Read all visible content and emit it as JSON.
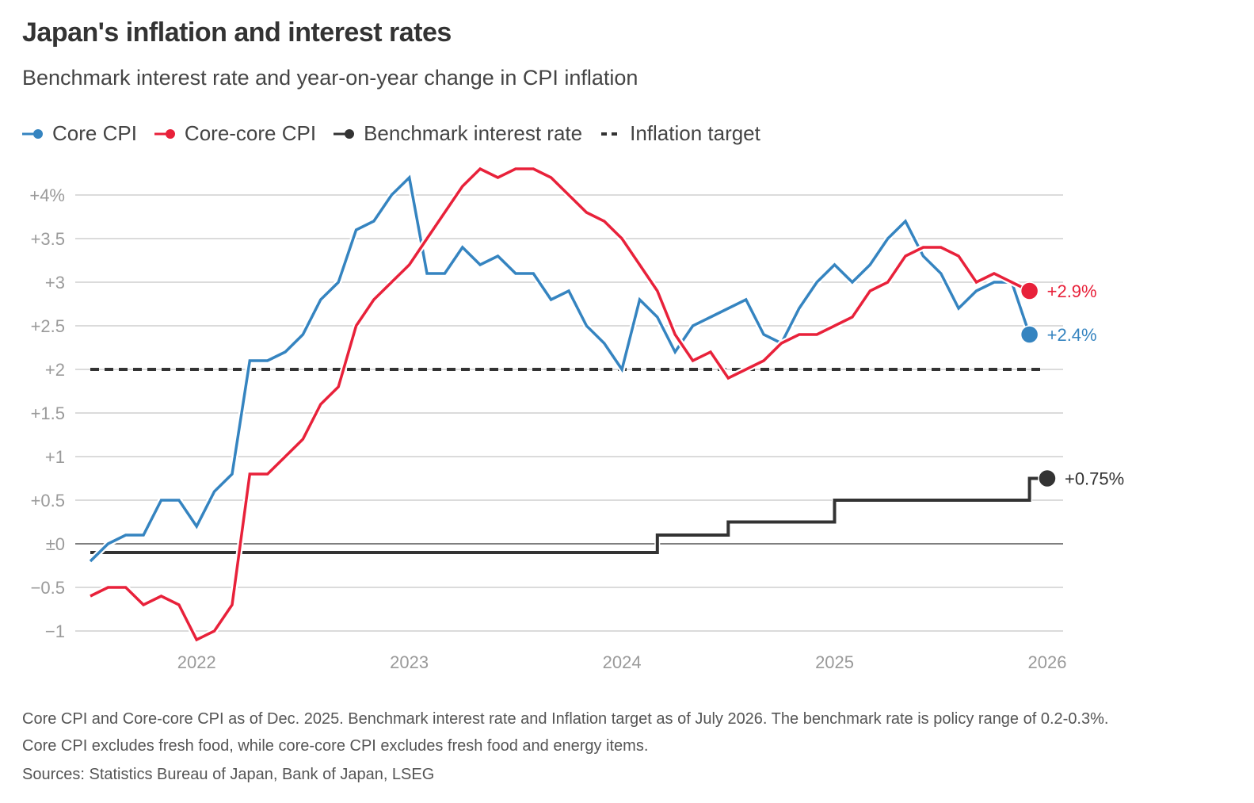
{
  "header": {
    "title": "Japan's inflation and interest rates",
    "subtitle": "Benchmark interest rate and year-on-year change in CPI inflation"
  },
  "legend": [
    {
      "label": "Core CPI",
      "color": "#3584c0",
      "style": "line-dot"
    },
    {
      "label": "Core-core CPI",
      "color": "#e8213a",
      "style": "line-dot"
    },
    {
      "label": "Benchmark interest rate",
      "color": "#333333",
      "style": "line-dot"
    },
    {
      "label": "Inflation target",
      "color": "#333333",
      "style": "dashed"
    }
  ],
  "footer": {
    "note": "Core CPI and Core-core CPI as of Dec. 2025. Benchmark interest rate and Inflation target as of July 2026. The benchmark rate is policy range of 0.2-0.3%. Core CPI excludes fresh food, while core-core CPI excludes fresh food and energy items.",
    "source": "Sources: Statistics Bureau of Japan, Bank of Japan, LSEG"
  },
  "chart_data": {
    "type": "line",
    "title": "Japan's inflation and interest rates",
    "subtitle": "Benchmark interest rate and year-on-year change in CPI inflation",
    "xlabel": "",
    "ylabel": "",
    "x_start": "2021-07",
    "x_unit": "month",
    "xlim": [
      "2021-07",
      "2026-01"
    ],
    "ylim": [
      -1,
      4
    ],
    "grid": true,
    "legend_position": "top-left",
    "y_ticks": [
      {
        "value": 4,
        "label": "+4%"
      },
      {
        "value": 3.5,
        "label": "+3.5"
      },
      {
        "value": 3,
        "label": "+3"
      },
      {
        "value": 2.5,
        "label": "+2.5"
      },
      {
        "value": 2,
        "label": "+2"
      },
      {
        "value": 1.5,
        "label": "+1.5"
      },
      {
        "value": 1,
        "label": "+1"
      },
      {
        "value": 0.5,
        "label": "+0.5"
      },
      {
        "value": 0,
        "label": "±0"
      },
      {
        "value": -0.5,
        "label": "−0.5"
      },
      {
        "value": -1,
        "label": "−1"
      }
    ],
    "x_ticks": [
      {
        "value": "2022-01",
        "label": "2022"
      },
      {
        "value": "2023-01",
        "label": "2023"
      },
      {
        "value": "2024-01",
        "label": "2024"
      },
      {
        "value": "2025-01",
        "label": "2025"
      },
      {
        "value": "2026-01",
        "label": "2026"
      }
    ],
    "series": [
      {
        "name": "Core CPI",
        "color": "#3584c0",
        "end_label": "+2.4%",
        "values": [
          -0.2,
          0.0,
          0.1,
          0.1,
          0.5,
          0.5,
          0.2,
          0.6,
          0.8,
          2.1,
          2.1,
          2.2,
          2.4,
          2.8,
          3.0,
          3.6,
          3.7,
          4.0,
          4.2,
          3.1,
          3.1,
          3.4,
          3.2,
          3.3,
          3.1,
          3.1,
          2.8,
          2.9,
          2.5,
          2.3,
          2.0,
          2.8,
          2.6,
          2.2,
          2.5,
          2.6,
          2.7,
          2.8,
          2.4,
          2.3,
          2.7,
          3.0,
          3.2,
          3.0,
          3.2,
          3.5,
          3.7,
          3.3,
          3.1,
          2.7,
          2.9,
          3.0,
          3.0,
          2.4
        ]
      },
      {
        "name": "Core-core CPI",
        "color": "#e8213a",
        "end_label": "+2.9%",
        "values": [
          -0.6,
          -0.5,
          -0.5,
          -0.7,
          -0.6,
          -0.7,
          -1.1,
          -1.0,
          -0.7,
          0.8,
          0.8,
          1.0,
          1.2,
          1.6,
          1.8,
          2.5,
          2.8,
          3.0,
          3.2,
          3.5,
          3.8,
          4.1,
          4.3,
          4.2,
          4.3,
          4.3,
          4.2,
          4.0,
          3.8,
          3.7,
          3.5,
          3.2,
          2.9,
          2.4,
          2.1,
          2.2,
          1.9,
          2.0,
          2.1,
          2.3,
          2.4,
          2.4,
          2.5,
          2.6,
          2.9,
          3.0,
          3.3,
          3.4,
          3.4,
          3.3,
          3.0,
          3.1,
          3.0,
          2.9
        ]
      },
      {
        "name": "Benchmark interest rate",
        "color": "#333333",
        "type": "step",
        "end_label": "+0.75%",
        "steps": [
          {
            "from": "2021-07",
            "value": -0.1
          },
          {
            "from": "2024-03",
            "value": 0.1
          },
          {
            "from": "2024-07",
            "value": 0.25
          },
          {
            "from": "2025-01",
            "value": 0.5
          },
          {
            "from": "2025-12",
            "value": 0.75
          }
        ],
        "end": "2026-01"
      },
      {
        "name": "Inflation target",
        "color": "#333333",
        "type": "dashed",
        "value": 2,
        "from": "2021-07",
        "to": "2026-01"
      }
    ]
  }
}
